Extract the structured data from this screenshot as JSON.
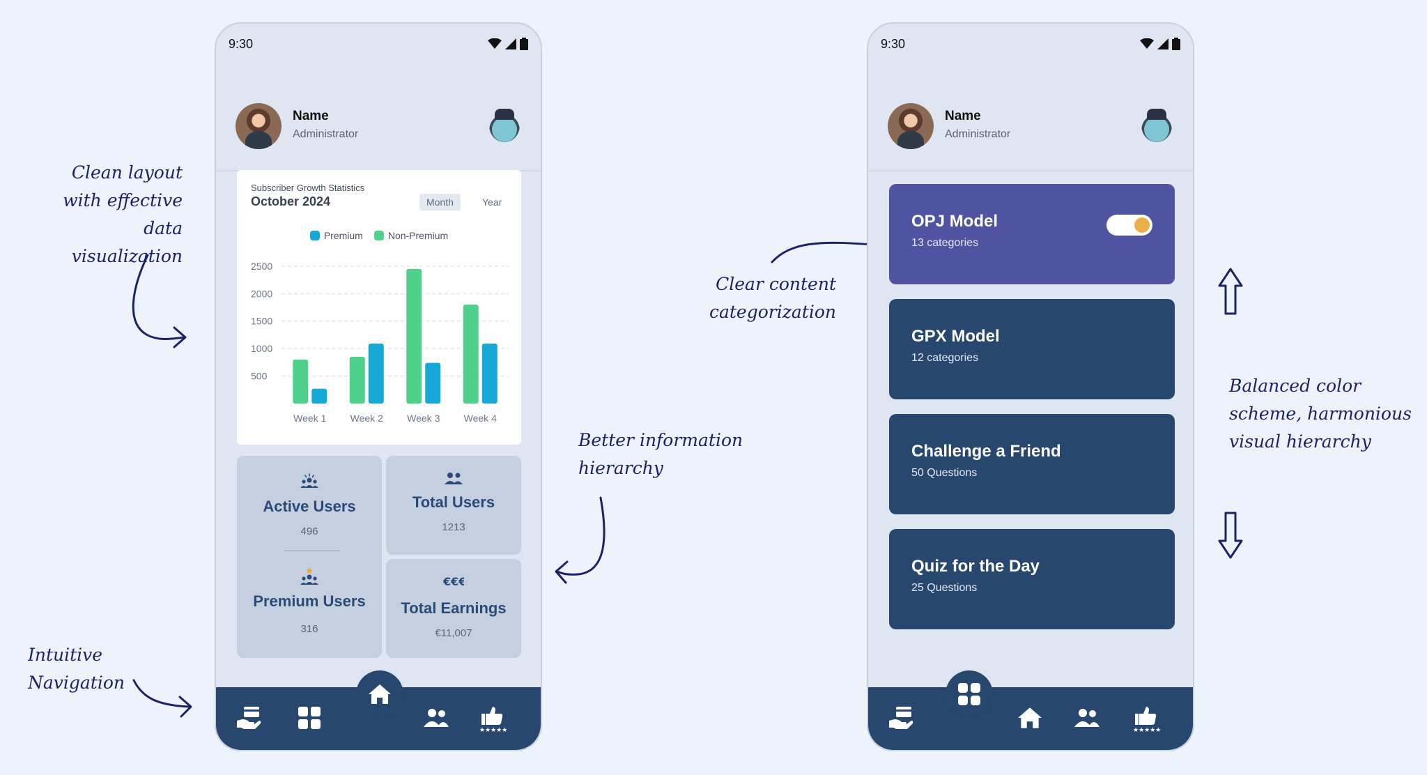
{
  "annotations": {
    "clean_layout": [
      "Clean layout",
      "with effective data",
      "visualization"
    ],
    "intuitive_navigation": "Intuitive Navigation",
    "better_hierarchy": [
      "Better information",
      "hierarchy"
    ],
    "clear_categorization": [
      "Clear content",
      "categorization"
    ],
    "balanced_color": [
      "Balanced color",
      "scheme, harmonious",
      "visual hierarchy"
    ]
  },
  "status_bar": {
    "time": "9:30"
  },
  "profile": {
    "name": "Name",
    "role": "Administrator"
  },
  "chart_card": {
    "subtitle": "Subscriber Growth Statistics",
    "title": "October 2024",
    "segments": [
      "Month",
      "Year"
    ],
    "active_segment": "Month"
  },
  "chart_data": {
    "type": "bar",
    "title": "Subscriber Growth Statistics",
    "subtitle": "October 2024",
    "categories": [
      "Week 1",
      "Week 2",
      "Week 3",
      "Week 4"
    ],
    "series": [
      {
        "name": "Non-Premium",
        "color": "#4fd18b",
        "values": [
          800,
          850,
          2450,
          1800
        ]
      },
      {
        "name": "Premium",
        "color": "#16a9d8",
        "values": [
          270,
          1090,
          740,
          1090
        ]
      }
    ],
    "y_ticks": [
      500,
      1000,
      1500,
      2000,
      2500
    ],
    "ylim": [
      0,
      2600
    ],
    "legend": [
      "Premium",
      "Non-Premium"
    ],
    "legend_position": "top-center",
    "grid": true
  },
  "stats": {
    "active_users": {
      "label": "Active Users",
      "value": "496"
    },
    "total_users": {
      "label": "Total Users",
      "value": "1213"
    },
    "premium_users": {
      "label": "Premium Users",
      "value": "316"
    },
    "total_earnings": {
      "label": "Total Earnings",
      "value": "€11,007"
    }
  },
  "categories": [
    {
      "title": "OPJ Model",
      "subtitle": "13 categories",
      "active": true
    },
    {
      "title": "GPX Model",
      "subtitle": "12 categories",
      "active": false
    },
    {
      "title": "Challenge a Friend",
      "subtitle": "50 Questions",
      "active": false
    },
    {
      "title": "Quiz for the Day",
      "subtitle": "25 Questions",
      "active": false
    }
  ],
  "nav_left": [
    "payment-icon",
    "grid-icon",
    "home-icon",
    "users-icon",
    "rating-icon"
  ],
  "nav_left_active": "home-icon",
  "nav_right": [
    "payment-icon",
    "grid-icon",
    "home-icon",
    "users-icon",
    "rating-icon"
  ],
  "nav_right_active": "grid-icon",
  "colors": {
    "background": "#eef2fb",
    "phone": "#dfe5f1",
    "navy": "#27476f",
    "accent": "#4e54a1",
    "premium": "#16a9d8",
    "non_premium": "#4fd18b"
  }
}
